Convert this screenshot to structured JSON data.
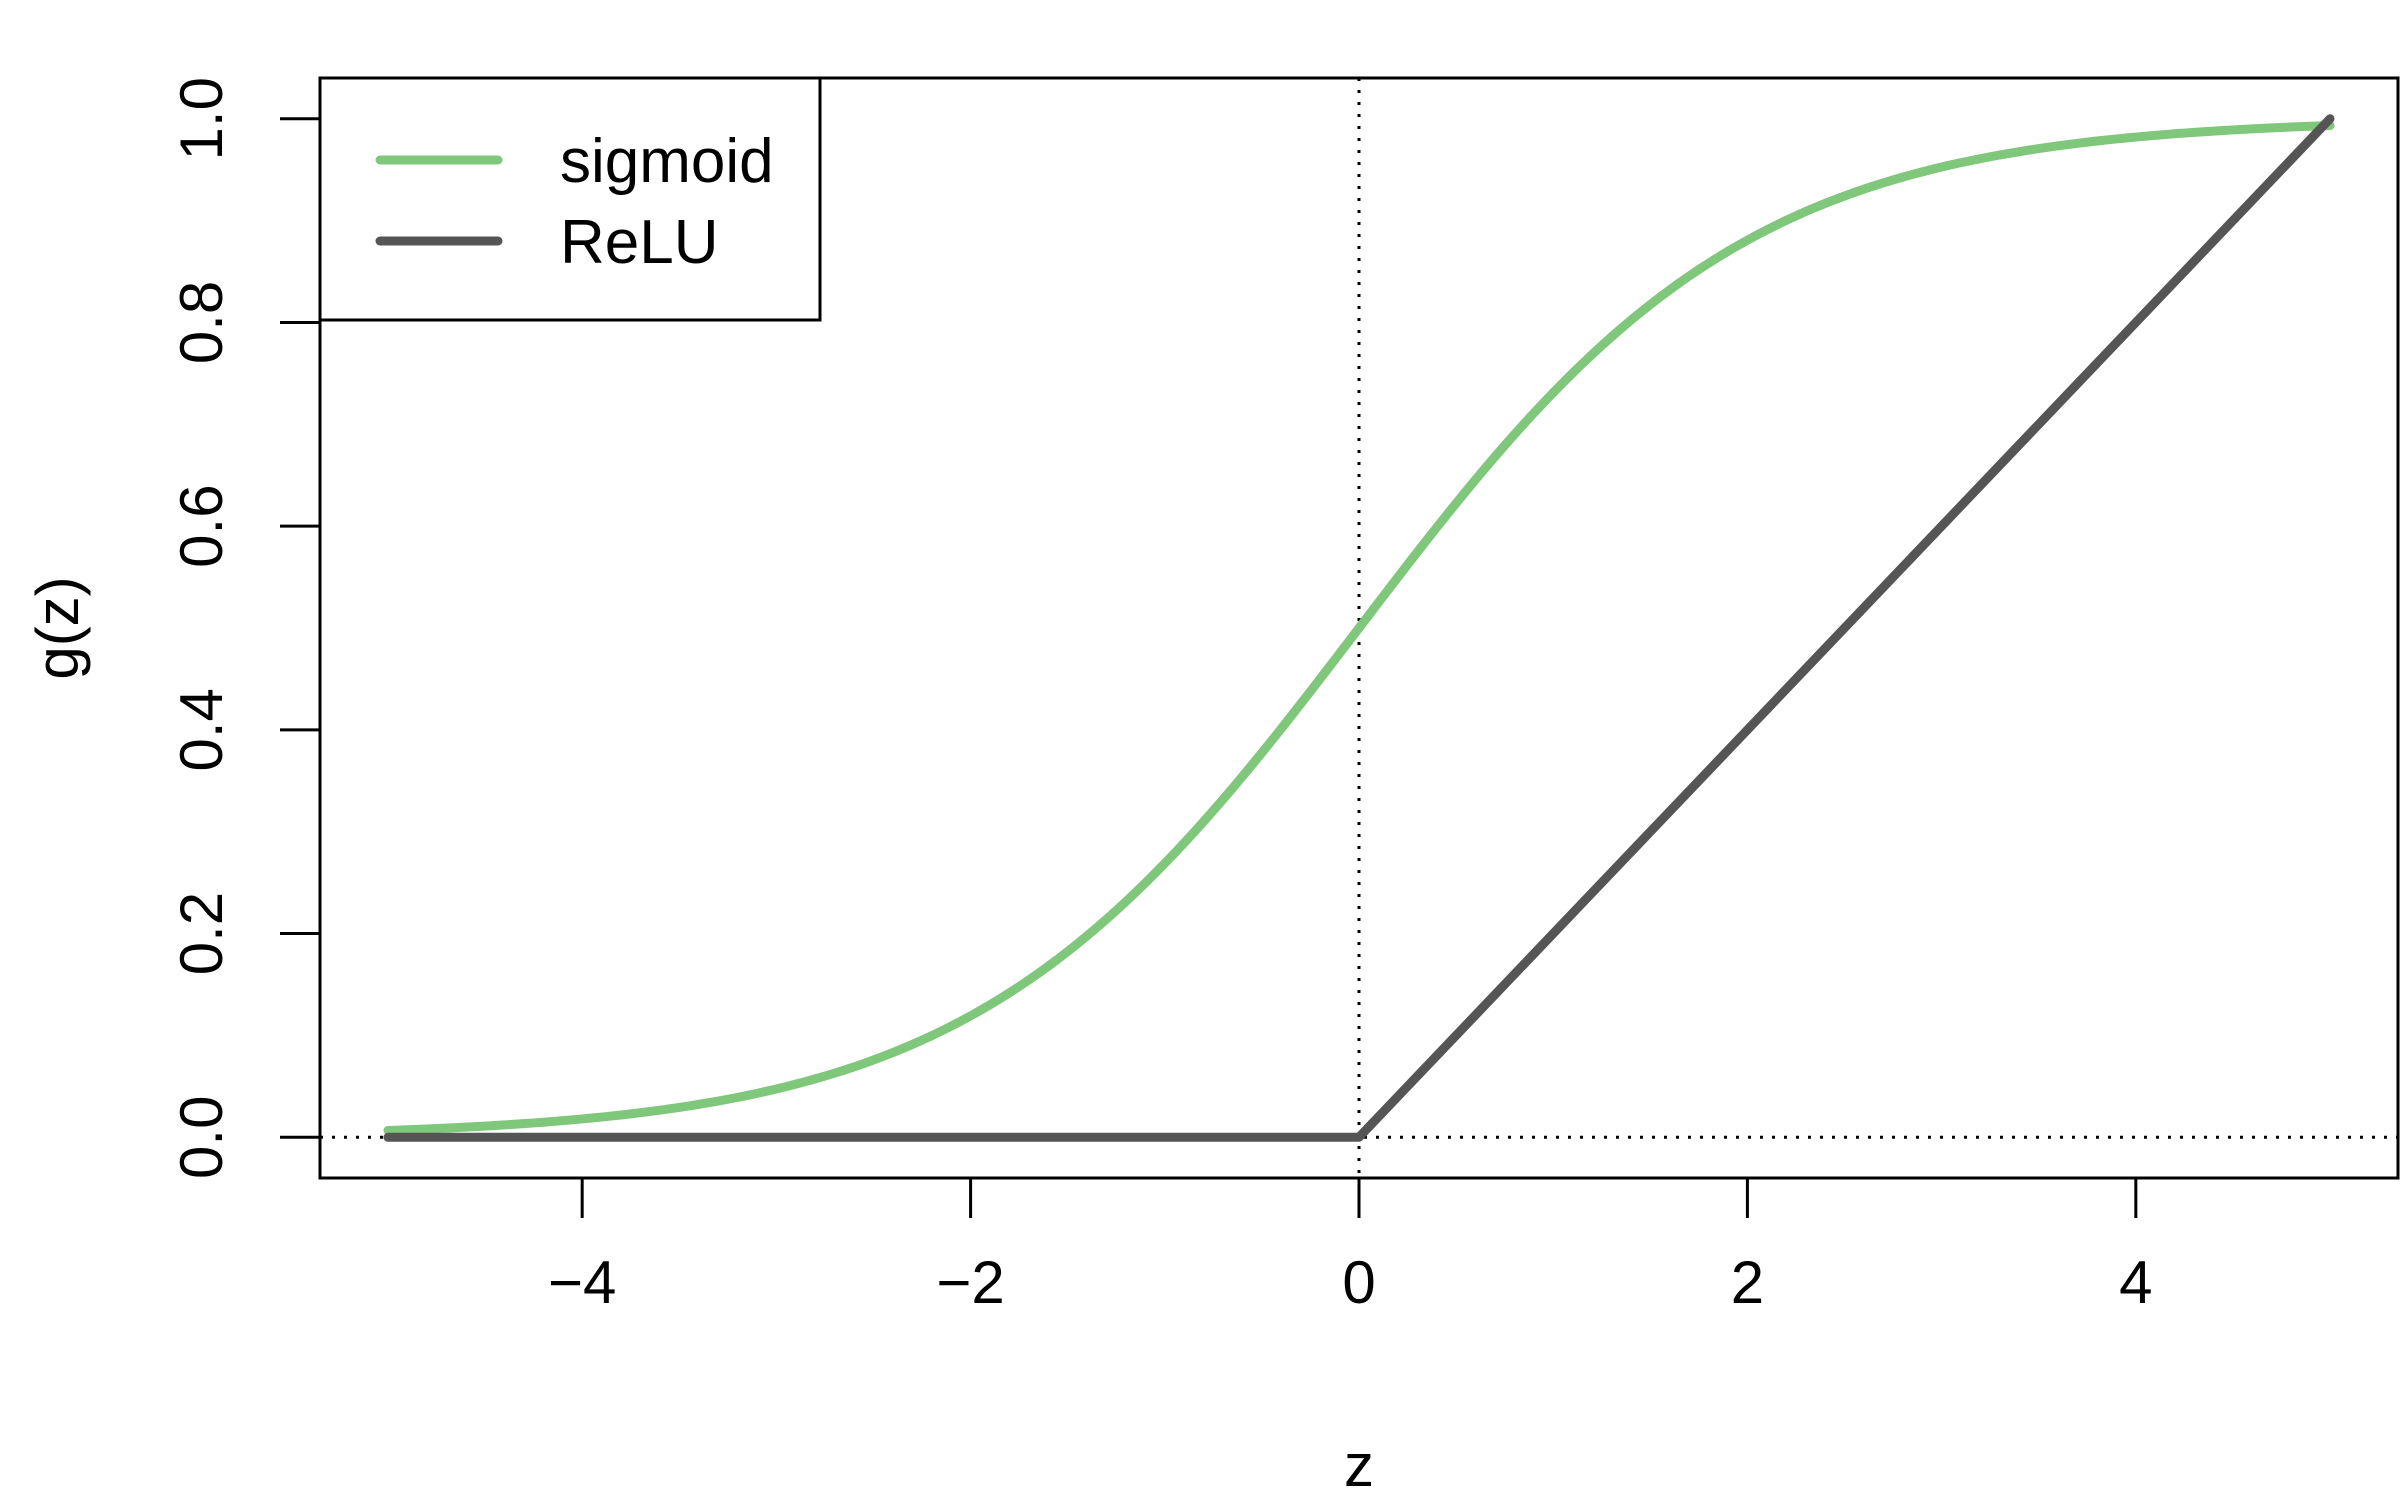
{
  "chart_data": {
    "type": "line",
    "title": "",
    "xlabel": "z",
    "ylabel": "g(z)",
    "xlim": [
      -5.35,
      5.35
    ],
    "ylim": [
      -0.04,
      1.04
    ],
    "x_ticks": [
      -4,
      -2,
      0,
      2,
      4
    ],
    "x_tick_labels": [
      "−4",
      "−2",
      "0",
      "2",
      "4"
    ],
    "y_ticks": [
      0.0,
      0.2,
      0.4,
      0.6,
      0.8,
      1.0
    ],
    "y_tick_labels": [
      "0.0",
      "0.2",
      "0.4",
      "0.6",
      "0.8",
      "1.0"
    ],
    "grid": false,
    "legend_position": "top-left",
    "reference_lines": [
      {
        "orientation": "horizontal",
        "value": 0,
        "style": "dotted",
        "color": "#000000"
      },
      {
        "orientation": "vertical",
        "value": 0,
        "style": "dotted",
        "color": "#000000"
      }
    ],
    "series": [
      {
        "name": "sigmoid",
        "color": "#7fc77b",
        "x": [
          -5,
          -4.5,
          -4,
          -3.5,
          -3,
          -2.5,
          -2,
          -1.5,
          -1,
          -0.5,
          0,
          0.5,
          1,
          1.5,
          2,
          2.5,
          3,
          3.5,
          4,
          4.5,
          5
        ],
        "y": [
          0.0067,
          0.011,
          0.018,
          0.029,
          0.047,
          0.076,
          0.119,
          0.182,
          0.269,
          0.378,
          0.5,
          0.622,
          0.731,
          0.818,
          0.881,
          0.924,
          0.953,
          0.971,
          0.982,
          0.989,
          0.9933
        ]
      },
      {
        "name": "ReLU",
        "color": "#555555",
        "x": [
          -5,
          0,
          5
        ],
        "y": [
          0,
          0,
          1
        ]
      }
    ]
  }
}
